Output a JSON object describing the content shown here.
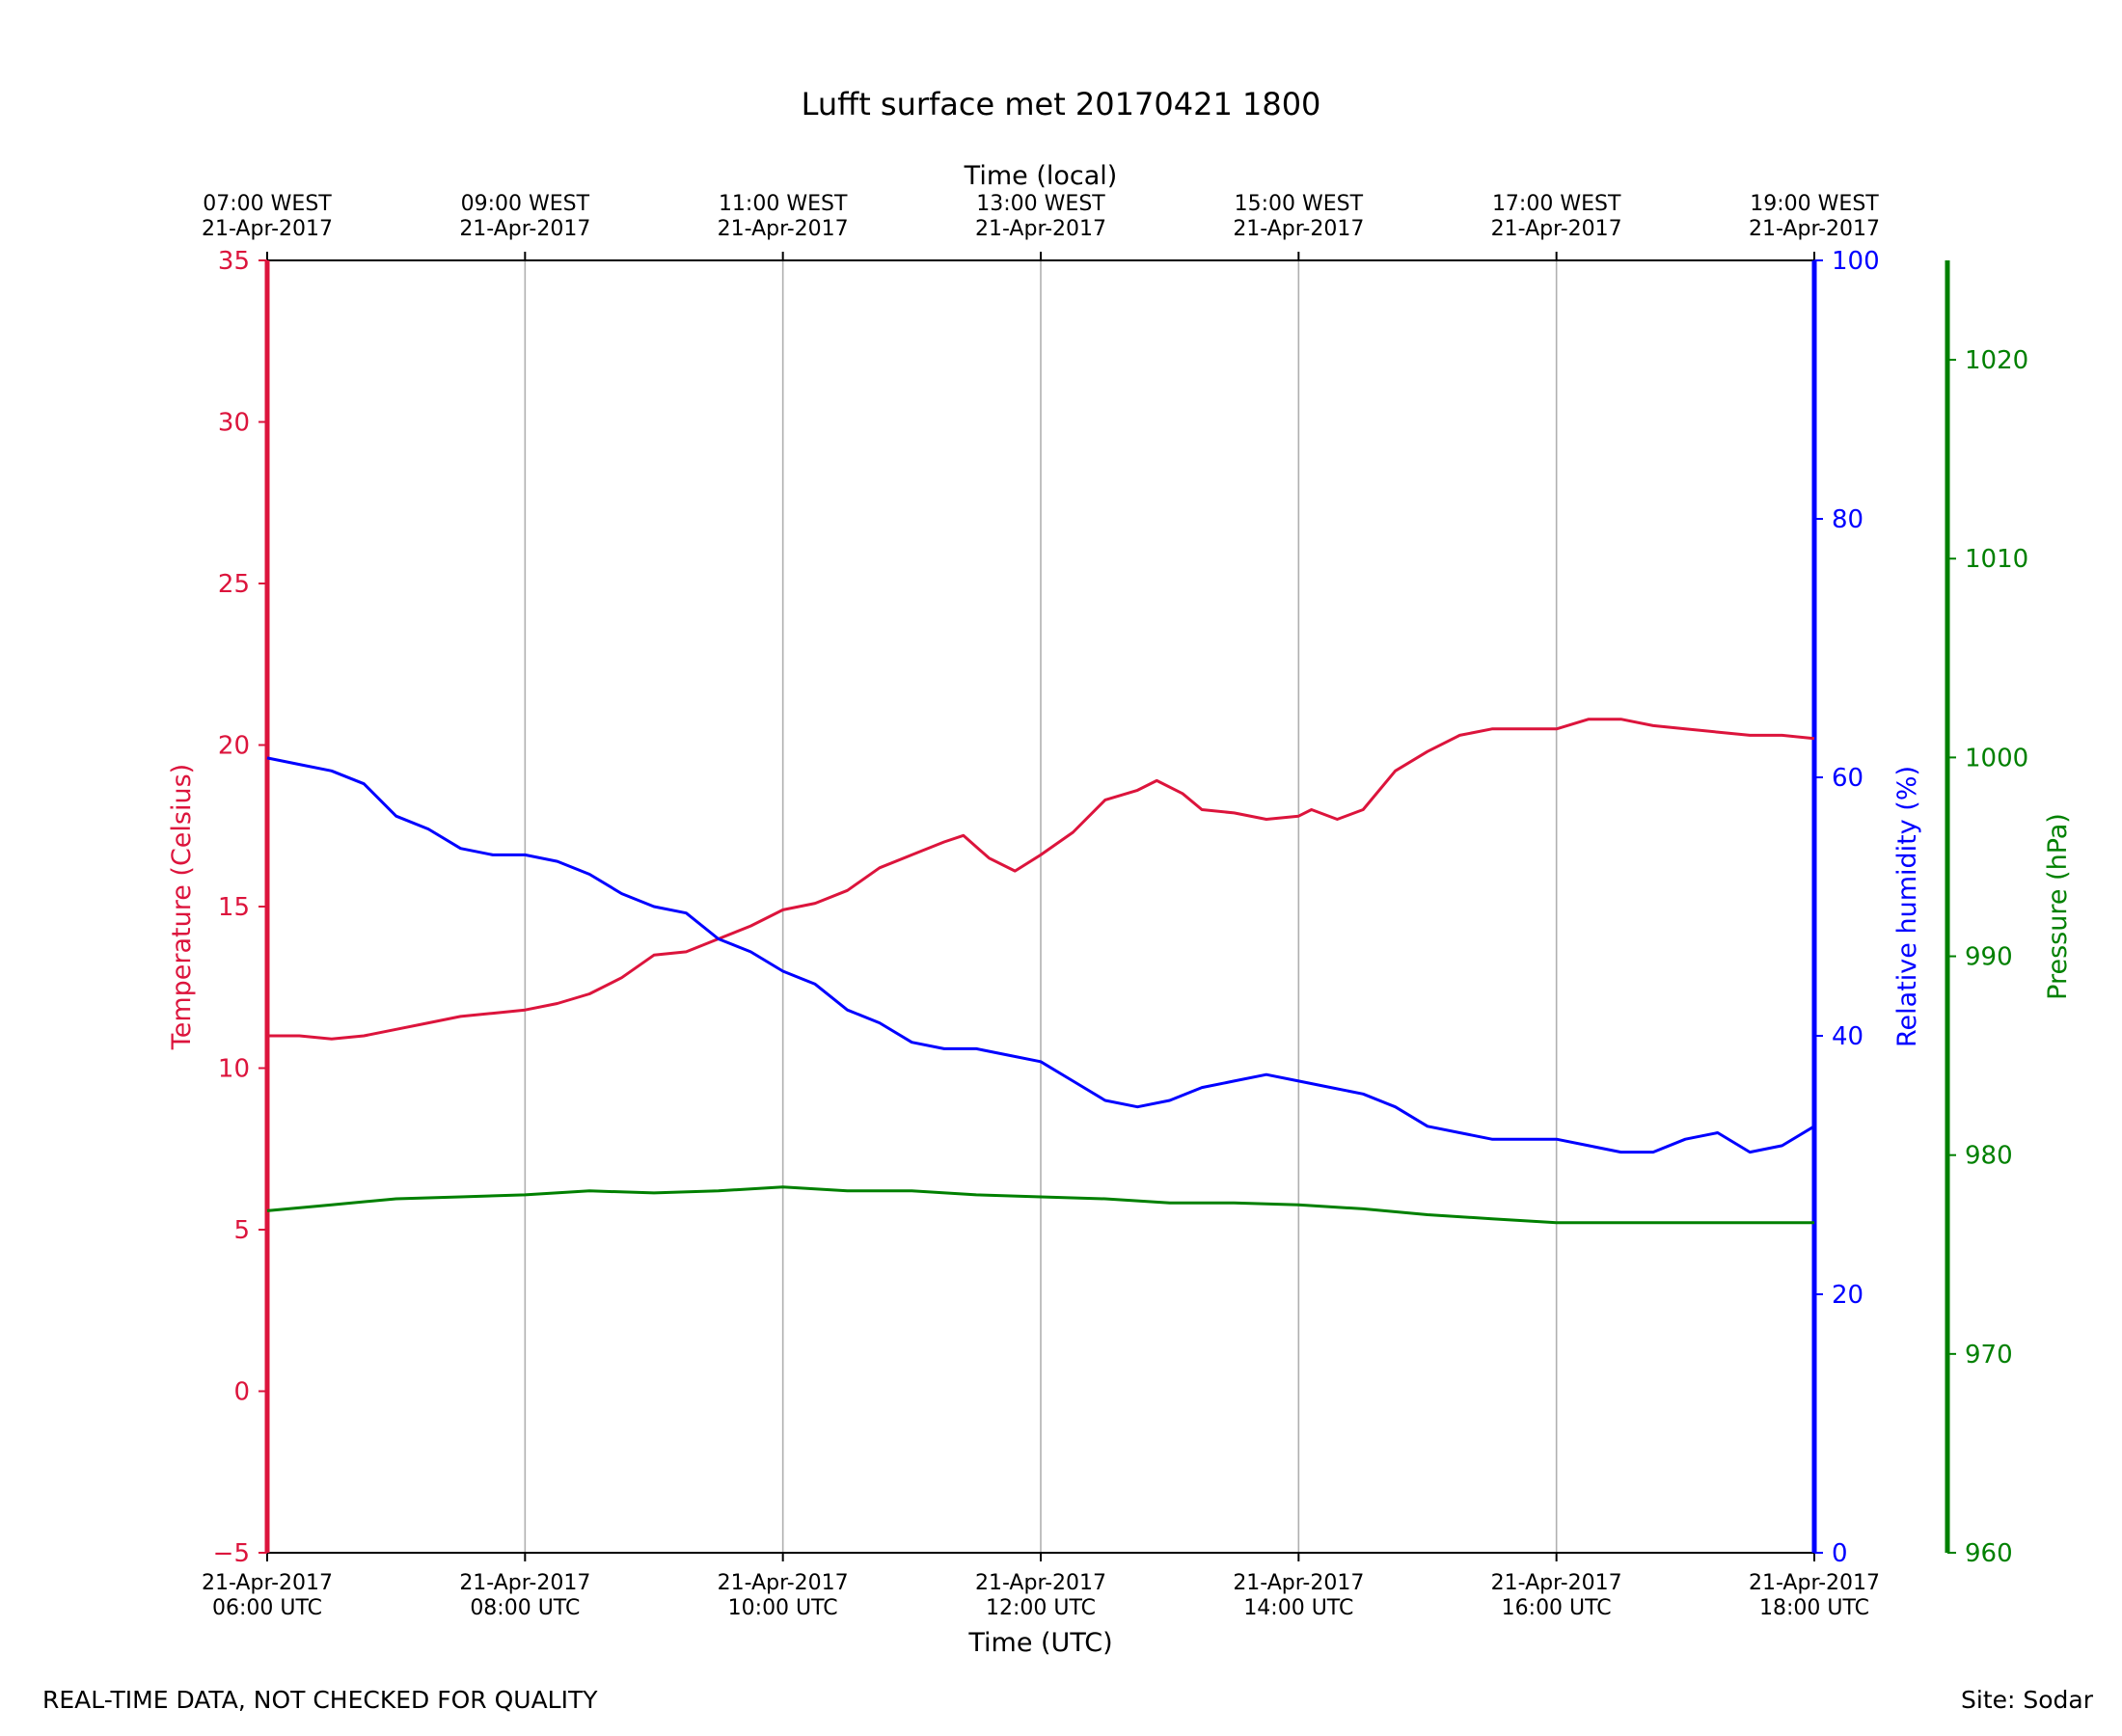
{
  "chart_data": {
    "type": "line",
    "title": "Lufft surface met 20170421 1800",
    "xlabel_bottom": "Time (UTC)",
    "xlabel_top": "Time (local)",
    "x_unit": "hours UTC",
    "xlim": [
      6,
      18
    ],
    "x_ticks": [
      6,
      8,
      10,
      12,
      14,
      16,
      18
    ],
    "bottom_tick_labels": [
      {
        "line1": "21-Apr-2017",
        "line2": "06:00 UTC"
      },
      {
        "line1": "21-Apr-2017",
        "line2": "08:00 UTC"
      },
      {
        "line1": "21-Apr-2017",
        "line2": "10:00 UTC"
      },
      {
        "line1": "21-Apr-2017",
        "line2": "12:00 UTC"
      },
      {
        "line1": "21-Apr-2017",
        "line2": "14:00 UTC"
      },
      {
        "line1": "21-Apr-2017",
        "line2": "16:00 UTC"
      },
      {
        "line1": "21-Apr-2017",
        "line2": "18:00 UTC"
      }
    ],
    "top_tick_labels": [
      {
        "line1": "07:00 WEST",
        "line2": "21-Apr-2017"
      },
      {
        "line1": "09:00 WEST",
        "line2": "21-Apr-2017"
      },
      {
        "line1": "11:00 WEST",
        "line2": "21-Apr-2017"
      },
      {
        "line1": "13:00 WEST",
        "line2": "21-Apr-2017"
      },
      {
        "line1": "15:00 WEST",
        "line2": "21-Apr-2017"
      },
      {
        "line1": "17:00 WEST",
        "line2": "21-Apr-2017"
      },
      {
        "line1": "19:00 WEST",
        "line2": "21-Apr-2017"
      }
    ],
    "axes": {
      "temperature": {
        "label": "Temperature (Celsius)",
        "ylim": [
          -5,
          35
        ],
        "ticks": [
          -5,
          0,
          5,
          10,
          15,
          20,
          25,
          30,
          35
        ],
        "tick_labels": [
          "−5",
          "0",
          "5",
          "10",
          "15",
          "20",
          "25",
          "30",
          "35"
        ],
        "color": "#dc143c"
      },
      "humidity": {
        "label": "Relative humidity (%)",
        "ylim": [
          0,
          100
        ],
        "ticks": [
          0,
          20,
          40,
          60,
          80,
          100
        ],
        "tick_labels": [
          "0",
          "20",
          "40",
          "60",
          "80",
          "100"
        ],
        "color": "#0000ff"
      },
      "pressure": {
        "label": "Pressure (hPa)",
        "ylim": [
          960,
          1025
        ],
        "ticks": [
          960,
          970,
          980,
          990,
          1000,
          1010,
          1020
        ],
        "tick_labels": [
          "960",
          "970",
          "980",
          "990",
          "1000",
          "1010",
          "1020"
        ],
        "color": "#008000"
      }
    },
    "series": [
      {
        "name": "Temperature",
        "axis": "temperature",
        "color": "#dc143c",
        "points": [
          [
            6.0,
            11.0
          ],
          [
            6.25,
            11.0
          ],
          [
            6.5,
            10.9
          ],
          [
            6.75,
            11.0
          ],
          [
            7.0,
            11.2
          ],
          [
            7.25,
            11.4
          ],
          [
            7.5,
            11.6
          ],
          [
            7.75,
            11.7
          ],
          [
            8.0,
            11.8
          ],
          [
            8.25,
            12.0
          ],
          [
            8.5,
            12.3
          ],
          [
            8.75,
            12.8
          ],
          [
            9.0,
            13.5
          ],
          [
            9.25,
            13.6
          ],
          [
            9.5,
            14.0
          ],
          [
            9.75,
            14.4
          ],
          [
            10.0,
            14.9
          ],
          [
            10.25,
            15.1
          ],
          [
            10.5,
            15.5
          ],
          [
            10.75,
            16.2
          ],
          [
            11.0,
            16.6
          ],
          [
            11.25,
            17.0
          ],
          [
            11.4,
            17.2
          ],
          [
            11.6,
            16.5
          ],
          [
            11.8,
            16.1
          ],
          [
            12.0,
            16.6
          ],
          [
            12.25,
            17.3
          ],
          [
            12.5,
            18.3
          ],
          [
            12.75,
            18.6
          ],
          [
            12.9,
            18.9
          ],
          [
            13.1,
            18.5
          ],
          [
            13.25,
            18.0
          ],
          [
            13.5,
            17.9
          ],
          [
            13.75,
            17.7
          ],
          [
            14.0,
            17.8
          ],
          [
            14.1,
            18.0
          ],
          [
            14.3,
            17.7
          ],
          [
            14.5,
            18.0
          ],
          [
            14.75,
            19.2
          ],
          [
            15.0,
            19.8
          ],
          [
            15.25,
            20.3
          ],
          [
            15.5,
            20.5
          ],
          [
            15.75,
            20.5
          ],
          [
            16.0,
            20.5
          ],
          [
            16.25,
            20.8
          ],
          [
            16.5,
            20.8
          ],
          [
            16.75,
            20.6
          ],
          [
            17.0,
            20.5
          ],
          [
            17.25,
            20.4
          ],
          [
            17.5,
            20.3
          ],
          [
            17.75,
            20.3
          ],
          [
            18.0,
            20.2
          ]
        ]
      },
      {
        "name": "Relative humidity",
        "axis": "humidity",
        "color": "#0000ff",
        "points": [
          [
            6.0,
            61.5
          ],
          [
            6.25,
            61.0
          ],
          [
            6.5,
            60.5
          ],
          [
            6.75,
            59.5
          ],
          [
            7.0,
            57.0
          ],
          [
            7.25,
            56.0
          ],
          [
            7.5,
            54.5
          ],
          [
            7.75,
            54.0
          ],
          [
            8.0,
            54.0
          ],
          [
            8.25,
            53.5
          ],
          [
            8.5,
            52.5
          ],
          [
            8.75,
            51.0
          ],
          [
            9.0,
            50.0
          ],
          [
            9.25,
            49.5
          ],
          [
            9.5,
            47.5
          ],
          [
            9.75,
            46.5
          ],
          [
            10.0,
            45.0
          ],
          [
            10.25,
            44.0
          ],
          [
            10.5,
            42.0
          ],
          [
            10.75,
            41.0
          ],
          [
            11.0,
            39.5
          ],
          [
            11.25,
            39.0
          ],
          [
            11.5,
            39.0
          ],
          [
            11.75,
            38.5
          ],
          [
            12.0,
            38.0
          ],
          [
            12.25,
            36.5
          ],
          [
            12.5,
            35.0
          ],
          [
            12.75,
            34.5
          ],
          [
            13.0,
            35.0
          ],
          [
            13.25,
            36.0
          ],
          [
            13.5,
            36.5
          ],
          [
            13.75,
            37.0
          ],
          [
            14.0,
            36.5
          ],
          [
            14.25,
            36.0
          ],
          [
            14.5,
            35.5
          ],
          [
            14.75,
            34.5
          ],
          [
            15.0,
            33.0
          ],
          [
            15.25,
            32.5
          ],
          [
            15.5,
            32.0
          ],
          [
            15.75,
            32.0
          ],
          [
            16.0,
            32.0
          ],
          [
            16.25,
            31.5
          ],
          [
            16.5,
            31.0
          ],
          [
            16.75,
            31.0
          ],
          [
            17.0,
            32.0
          ],
          [
            17.25,
            32.5
          ],
          [
            17.5,
            31.0
          ],
          [
            17.75,
            31.5
          ],
          [
            18.0,
            33.0
          ]
        ]
      },
      {
        "name": "Pressure",
        "axis": "pressure",
        "color": "#008000",
        "points": [
          [
            6.0,
            977.2
          ],
          [
            6.5,
            977.5
          ],
          [
            7.0,
            977.8
          ],
          [
            7.5,
            977.9
          ],
          [
            8.0,
            978.0
          ],
          [
            8.5,
            978.2
          ],
          [
            9.0,
            978.1
          ],
          [
            9.5,
            978.2
          ],
          [
            10.0,
            978.4
          ],
          [
            10.5,
            978.2
          ],
          [
            11.0,
            978.2
          ],
          [
            11.5,
            978.0
          ],
          [
            12.0,
            977.9
          ],
          [
            12.5,
            977.8
          ],
          [
            13.0,
            977.6
          ],
          [
            13.5,
            977.6
          ],
          [
            14.0,
            977.5
          ],
          [
            14.5,
            977.3
          ],
          [
            15.0,
            977.0
          ],
          [
            15.5,
            976.8
          ],
          [
            16.0,
            976.6
          ],
          [
            16.5,
            976.6
          ],
          [
            17.0,
            976.6
          ],
          [
            17.5,
            976.6
          ],
          [
            18.0,
            976.6
          ]
        ]
      }
    ]
  },
  "footer": {
    "left_note": "REAL-TIME DATA, NOT CHECKED FOR QUALITY",
    "site": "Site: Sodar"
  }
}
